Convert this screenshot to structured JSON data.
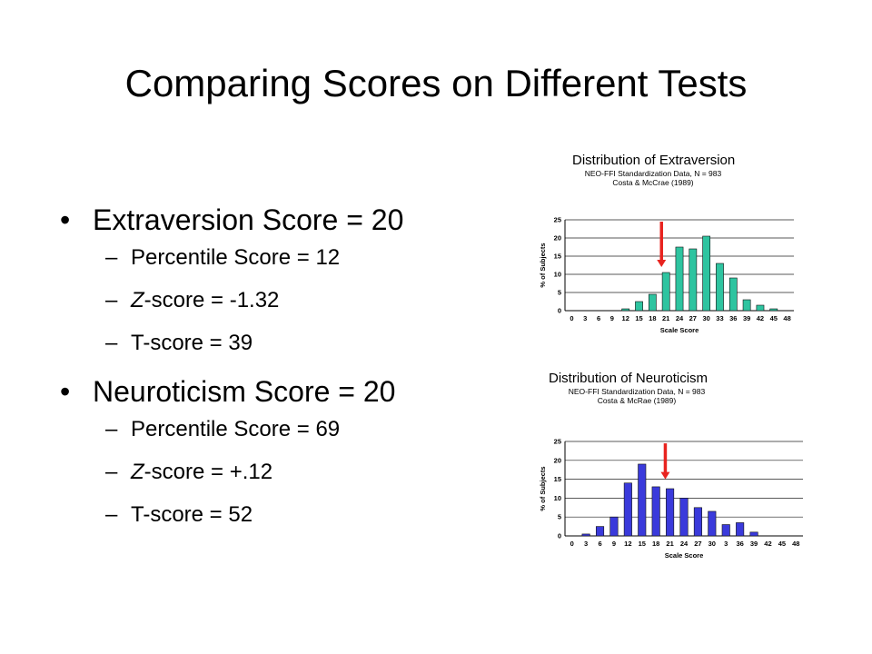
{
  "slide": {
    "title": "Comparing Scores on Different Tests",
    "bullets": [
      {
        "label": "Extraversion  Score = 20",
        "subs": [
          {
            "prefix": "Percentile Score = 12",
            "italic": "",
            "suffix": ""
          },
          {
            "prefix": "",
            "italic": "Z",
            "suffix": "-score = -1.32"
          },
          {
            "prefix": "T-score = 39",
            "italic": "",
            "suffix": ""
          }
        ]
      },
      {
        "label": "Neuroticism  Score = 20",
        "subs": [
          {
            "prefix": "Percentile Score = 69",
            "italic": "",
            "suffix": ""
          },
          {
            "prefix": "",
            "italic": "Z",
            "suffix": "-score = +.12"
          },
          {
            "prefix": "T-score = 52",
            "italic": "",
            "suffix": ""
          }
        ]
      }
    ],
    "bullet_symbol": "•",
    "dash_symbol": "–"
  },
  "chart_data": [
    {
      "type": "bar",
      "title": "Distribution of Extraversion",
      "subtitle_lines": [
        "NEO-FFI Standardization Data, N = 983",
        "Costa & McCrae (1989)"
      ],
      "xlabel": "Scale Score",
      "ylabel": "% of Subjects",
      "categories": [
        "0",
        "3",
        "6",
        "9",
        "12",
        "15",
        "18",
        "21",
        "24",
        "27",
        "30",
        "33",
        "36",
        "39",
        "42",
        "45",
        "48"
      ],
      "values": [
        0,
        0,
        0,
        0,
        0.5,
        2.5,
        4.5,
        10.5,
        17.5,
        17,
        20.5,
        13,
        9,
        3,
        1.5,
        0.5,
        0
      ],
      "ylim": [
        0,
        25
      ],
      "yticks": [
        0,
        5,
        10,
        15,
        20,
        25
      ],
      "grid": true,
      "bar_color": "#2ec4a0",
      "marker": {
        "x": 20,
        "color": "#e8231f"
      }
    },
    {
      "type": "bar",
      "title": "Distribution of Neuroticism",
      "subtitle_lines": [
        "NEO-FFI Standardization Data, N = 983",
        "Costa & McRae (1989)"
      ],
      "xlabel": "Scale Score",
      "ylabel": "% of Subjects",
      "categories": [
        "0",
        "3",
        "6",
        "9",
        "12",
        "15",
        "18",
        "21",
        "24",
        "27",
        "30",
        "3",
        "36",
        "39",
        "42",
        "45",
        "48"
      ],
      "values": [
        0,
        0.5,
        2.5,
        5,
        14,
        19,
        13,
        12.5,
        10,
        7.5,
        6.5,
        3,
        3.5,
        1,
        0,
        0,
        0
      ],
      "ylim": [
        0,
        25
      ],
      "yticks": [
        0,
        5,
        10,
        15,
        20,
        25
      ],
      "grid": true,
      "bar_color": "#3a3adb",
      "marker": {
        "x": 20,
        "color": "#e8231f"
      }
    }
  ]
}
